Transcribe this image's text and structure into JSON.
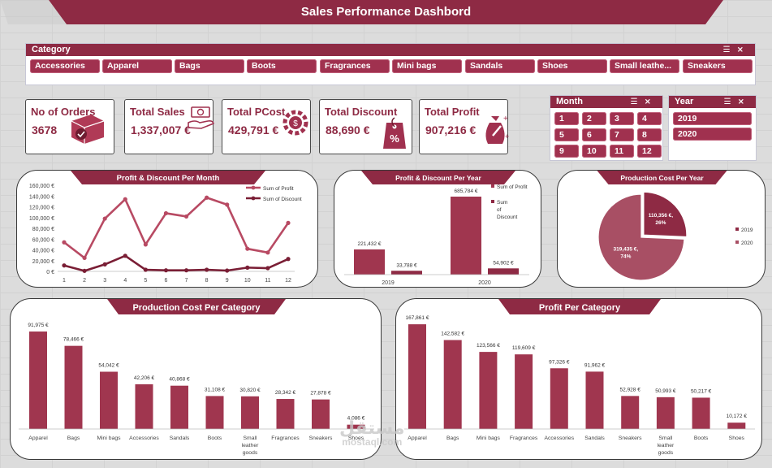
{
  "header": {
    "title": "Sales Performance Dashbord"
  },
  "category_slicer": {
    "title": "Category",
    "items": [
      "Accessories",
      "Apparel",
      "Bags",
      "Boots",
      "Fragrances",
      "Mini bags",
      "Sandals",
      "Shoes",
      "Small leathe...",
      "Sneakers"
    ]
  },
  "month_slicer": {
    "title": "Month",
    "items": [
      "1",
      "2",
      "3",
      "4",
      "5",
      "6",
      "7",
      "8",
      "9",
      "10",
      "11",
      "12"
    ]
  },
  "year_slicer": {
    "title": "Year",
    "items": [
      "2019",
      "2020"
    ]
  },
  "kpis": [
    {
      "title": "No of Orders",
      "value": "3678",
      "icon": "shopping-box-icon"
    },
    {
      "title": "Total Sales",
      "value": "1,337,007 €",
      "icon": "money-hand-icon"
    },
    {
      "title": "Total PCost",
      "value": "429,791 €",
      "icon": "cost-gear-icon"
    },
    {
      "title": "Total Discount",
      "value": "88,690 €",
      "icon": "discount-tag-icon"
    },
    {
      "title": "Total Profit",
      "value": "907,216 €",
      "icon": "profit-bag-icon"
    }
  ],
  "colors": {
    "accent": "#8e2a44",
    "bar": "#a0364f",
    "line_profit": "#b84a63",
    "line_discount": "#7a1e35",
    "pie_2019": "#8e2a44",
    "pie_2020": "#a84f64"
  },
  "watermark": {
    "main": "مستقل",
    "sub": "mostaql.com"
  },
  "chart_data": [
    {
      "type": "line",
      "title": "Profit & Discount Per Month",
      "x": [
        "1",
        "2",
        "3",
        "4",
        "5",
        "6",
        "7",
        "8",
        "9",
        "10",
        "11",
        "12"
      ],
      "y_ticks": [
        "0 €",
        "20,000 €",
        "40,000 €",
        "60,000 €",
        "80,000 €",
        "100,000 €",
        "120,000 €",
        "140,000 €",
        "160,000 €"
      ],
      "ylim": [
        0,
        160000
      ],
      "legend": "top-right",
      "series": [
        {
          "name": "Sum of Profit",
          "values": [
            54000,
            25000,
            98000,
            134000,
            50000,
            108000,
            102000,
            137000,
            124000,
            42000,
            35000,
            90000
          ]
        },
        {
          "name": "Sum of Discount",
          "values": [
            11000,
            1000,
            13000,
            29000,
            3000,
            2000,
            2000,
            3000,
            1500,
            7000,
            6000,
            23000
          ]
        }
      ]
    },
    {
      "type": "bar",
      "title": "Profit & Discount Per Year",
      "categories": [
        "2019",
        "2020"
      ],
      "legend": "right",
      "series": [
        {
          "name": "Sum of Profit",
          "values": [
            221432,
            685784
          ],
          "labels": [
            "221,432 €",
            "685,784 €"
          ]
        },
        {
          "name": "Sum of Discount",
          "values": [
            33788,
            54902
          ],
          "labels": [
            "33,788 €",
            "54,902 €"
          ]
        }
      ]
    },
    {
      "type": "pie",
      "title": "Production Cost Per Year",
      "legend": "right",
      "slices": [
        {
          "name": "2019",
          "value": 110356,
          "label_value": "110,356 €,",
          "label_pct": "26%"
        },
        {
          "name": "2020",
          "value": 319435,
          "label_value": "319,435 €,",
          "label_pct": "74%"
        }
      ]
    },
    {
      "type": "bar",
      "title": "Production Cost Per Category",
      "categories": [
        "Apparel",
        "Bags",
        "Mini bags",
        "Accessories",
        "Sandals",
        "Boots",
        "Small leather goods",
        "Fragrances",
        "Sneakers",
        "Shoes"
      ],
      "category_lines": [
        [
          "Apparel"
        ],
        [
          "Bags"
        ],
        [
          "Mini bags"
        ],
        [
          "Accessories"
        ],
        [
          "Sandals"
        ],
        [
          "Boots"
        ],
        [
          "Small",
          "leather",
          "goods"
        ],
        [
          "Fragrances"
        ],
        [
          "Sneakers"
        ],
        [
          "Shoes"
        ]
      ],
      "values": [
        91975,
        78466,
        54042,
        42206,
        40868,
        31108,
        30820,
        28342,
        27878,
        4086
      ],
      "labels": [
        "91,975 €",
        "78,466 €",
        "54,042 €",
        "42,206 €",
        "40,868 €",
        "31,108 €",
        "30,820 €",
        "28,342 €",
        "27,878 €",
        "4,086 €"
      ]
    },
    {
      "type": "bar",
      "title": "Profit Per Category",
      "categories": [
        "Apparel",
        "Bags",
        "Mini bags",
        "Fragrances",
        "Accessories",
        "Sandals",
        "Sneakers",
        "Small leather goods",
        "Boots",
        "Shoes"
      ],
      "category_lines": [
        [
          "Apparel"
        ],
        [
          "Bags"
        ],
        [
          "Mini bags"
        ],
        [
          "Fragrances"
        ],
        [
          "Accessories"
        ],
        [
          "Sandals"
        ],
        [
          "Sneakers"
        ],
        [
          "Small",
          "leather",
          "goods"
        ],
        [
          "Boots"
        ],
        [
          "Shoes"
        ]
      ],
      "values": [
        167861,
        142582,
        123566,
        119609,
        97326,
        91962,
        52928,
        50993,
        50217,
        10172
      ],
      "labels": [
        "167,861 €",
        "142,582 €",
        "123,566 €",
        "119,609 €",
        "97,326 €",
        "91,962 €",
        "52,928 €",
        "50,993 €",
        "50,217 €",
        "10,172 €"
      ]
    }
  ]
}
